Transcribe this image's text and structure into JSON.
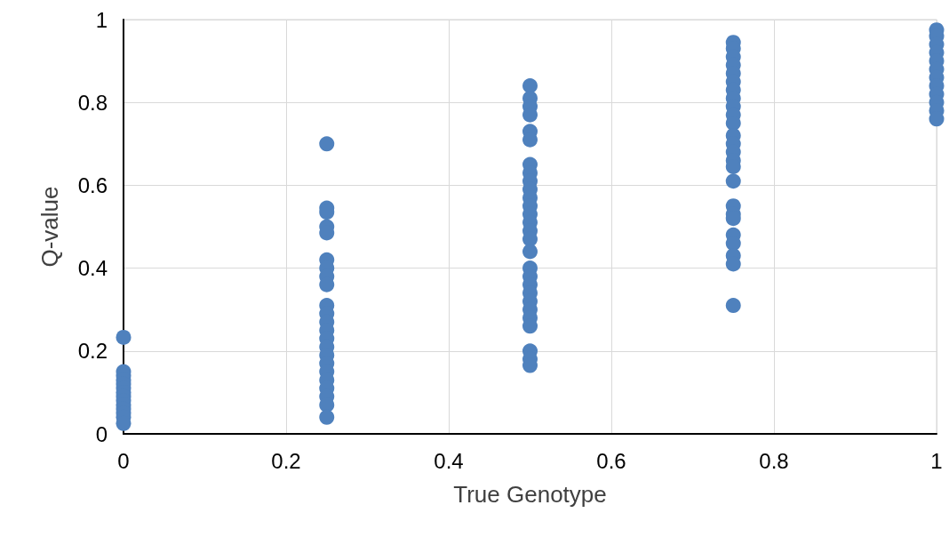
{
  "chart_data": {
    "type": "scatter",
    "xlabel": "True Genotype",
    "ylabel": "Q-value",
    "series": [
      {
        "color": "#4f81bd",
        "x": [
          0,
          0,
          0,
          0,
          0,
          0,
          0,
          0,
          0,
          0,
          0,
          0,
          0,
          0,
          0.25,
          0.25,
          0.25,
          0.25,
          0.25,
          0.25,
          0.25,
          0.25,
          0.25,
          0.25,
          0.25,
          0.25,
          0.25,
          0.25,
          0.25,
          0.25,
          0.25,
          0.25,
          0.25,
          0.25,
          0.25,
          0.25,
          0.25,
          0.5,
          0.5,
          0.5,
          0.5,
          0.5,
          0.5,
          0.5,
          0.5,
          0.5,
          0.5,
          0.5,
          0.5,
          0.5,
          0.5,
          0.5,
          0.5,
          0.5,
          0.5,
          0.5,
          0.5,
          0.5,
          0.5,
          0.5,
          0.5,
          0.5,
          0.5,
          0.5,
          0.5,
          0.75,
          0.75,
          0.75,
          0.75,
          0.75,
          0.75,
          0.75,
          0.75,
          0.75,
          0.75,
          0.75,
          0.75,
          0.75,
          0.75,
          0.75,
          0.75,
          0.75,
          0.75,
          0.75,
          0.75,
          0.75,
          0.75,
          0.75,
          0.75,
          0.75,
          1,
          1,
          1,
          1,
          1,
          1,
          1,
          1,
          1,
          1,
          1,
          1
        ],
        "values": [
          0.233,
          0.15,
          0.14,
          0.13,
          0.12,
          0.11,
          0.1,
          0.09,
          0.08,
          0.07,
          0.06,
          0.05,
          0.04,
          0.025,
          0.7,
          0.545,
          0.535,
          0.5,
          0.485,
          0.42,
          0.4,
          0.38,
          0.36,
          0.31,
          0.29,
          0.27,
          0.25,
          0.23,
          0.21,
          0.19,
          0.17,
          0.15,
          0.13,
          0.11,
          0.09,
          0.07,
          0.04,
          0.84,
          0.81,
          0.79,
          0.77,
          0.73,
          0.71,
          0.65,
          0.63,
          0.61,
          0.59,
          0.57,
          0.55,
          0.53,
          0.51,
          0.49,
          0.47,
          0.44,
          0.4,
          0.38,
          0.36,
          0.34,
          0.32,
          0.3,
          0.28,
          0.26,
          0.2,
          0.18,
          0.165,
          0.945,
          0.93,
          0.91,
          0.89,
          0.87,
          0.85,
          0.83,
          0.81,
          0.79,
          0.77,
          0.75,
          0.72,
          0.7,
          0.68,
          0.66,
          0.645,
          0.61,
          0.55,
          0.53,
          0.52,
          0.48,
          0.46,
          0.43,
          0.41,
          0.31,
          0.975,
          0.96,
          0.94,
          0.92,
          0.9,
          0.88,
          0.86,
          0.84,
          0.82,
          0.8,
          0.78,
          0.76
        ]
      }
    ],
    "xlim": [
      0,
      1
    ],
    "xticks": [
      0,
      0.2,
      0.4,
      0.6,
      0.8,
      1
    ],
    "ylim": [
      0,
      1
    ],
    "yticks": [
      0,
      0.2,
      0.4,
      0.6,
      0.8,
      1
    ],
    "grid": true,
    "marker": "circle"
  }
}
